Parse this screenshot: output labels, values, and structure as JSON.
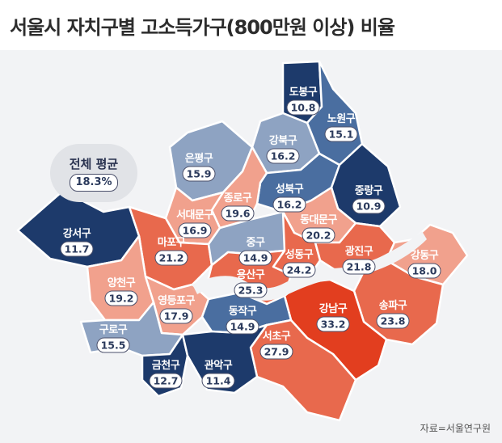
{
  "title": "서울시 자치구별 고소득가구(800만원 이상) 비율",
  "average": {
    "label": "전체 평균",
    "value": "18.3%"
  },
  "source": "자료=서울연구원",
  "colors": {
    "very_low": "#1d3a6b",
    "low": "#4a6ea0",
    "mid_low": "#8ea3c2",
    "mid": "#f1a18d",
    "high": "#e8694d",
    "very_high": "#e23e1f"
  },
  "districts": [
    {
      "id": "dobong",
      "name": "도봉구",
      "value": "10.8"
    },
    {
      "id": "nowon",
      "name": "노원구",
      "value": "15.1"
    },
    {
      "id": "gangbuk",
      "name": "강북구",
      "value": "16.2"
    },
    {
      "id": "eunpyeong",
      "name": "은평구",
      "value": "15.9"
    },
    {
      "id": "seongbuk",
      "name": "성북구",
      "value": "16.2"
    },
    {
      "id": "jungnang",
      "name": "중랑구",
      "value": "10.9"
    },
    {
      "id": "jongno",
      "name": "종로구",
      "value": "19.6"
    },
    {
      "id": "seodaemun",
      "name": "서대문구",
      "value": "16.9"
    },
    {
      "id": "dongdaemun",
      "name": "동대문구",
      "value": "20.2"
    },
    {
      "id": "gangseo",
      "name": "강서구",
      "value": "11.7"
    },
    {
      "id": "mapo",
      "name": "마포구",
      "value": "21.2"
    },
    {
      "id": "jung",
      "name": "중구",
      "value": "14.9"
    },
    {
      "id": "seongdong",
      "name": "성동구",
      "value": "24.2"
    },
    {
      "id": "gwangjin",
      "name": "광진구",
      "value": "21.8"
    },
    {
      "id": "gangdong",
      "name": "강동구",
      "value": "18.0"
    },
    {
      "id": "yangcheon",
      "name": "양천구",
      "value": "19.2"
    },
    {
      "id": "yongsan",
      "name": "용산구",
      "value": "25.3"
    },
    {
      "id": "yeongdeungpo",
      "name": "영등포구",
      "value": "17.9"
    },
    {
      "id": "songpa",
      "name": "송파구",
      "value": "23.8"
    },
    {
      "id": "gangnam",
      "name": "강남구",
      "value": "33.2"
    },
    {
      "id": "dongjak",
      "name": "동작구",
      "value": "14.9"
    },
    {
      "id": "guro",
      "name": "구로구",
      "value": "15.5"
    },
    {
      "id": "seocho",
      "name": "서초구",
      "value": "27.9"
    },
    {
      "id": "geumcheon",
      "name": "금천구",
      "value": "12.7"
    },
    {
      "id": "gwanak",
      "name": "관악구",
      "value": "11.4"
    }
  ]
}
